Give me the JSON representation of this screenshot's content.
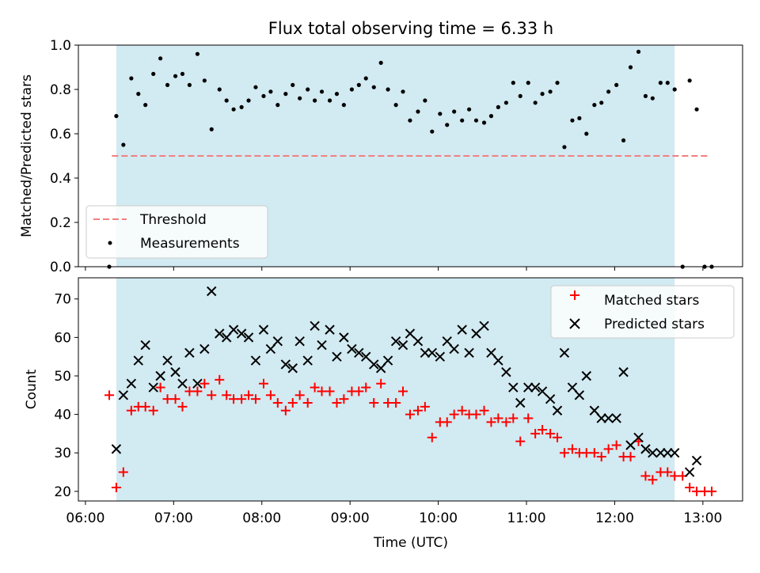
{
  "chart_data": [
    {
      "type": "scatter",
      "title": "Flux total observing time = 6.33 h",
      "ylabel": "Matched/Predicted stars",
      "ylim": [
        0,
        1.0
      ],
      "yticks": [
        "0.0",
        "0.2",
        "0.4",
        "0.6",
        "0.8",
        "1.0"
      ],
      "yticks_values": [
        0.0,
        0.2,
        0.4,
        0.6,
        0.8,
        1.0
      ],
      "shaded_range": [
        6.35,
        12.68
      ],
      "shade_color": "#add8e6",
      "threshold": {
        "value": 0.5,
        "x_range": [
          6.3,
          13.05
        ],
        "name": "Threshold",
        "color": "#f08080"
      },
      "legend": {
        "placement": "lower-left",
        "entries": [
          "Threshold",
          "Measurements"
        ]
      },
      "series": [
        {
          "name": "Measurements",
          "marker": "dot",
          "color": "#000000",
          "x": [
            6.27,
            6.35,
            6.43,
            6.52,
            6.6,
            6.68,
            6.77,
            6.85,
            6.93,
            7.02,
            7.1,
            7.18,
            7.27,
            7.35,
            7.43,
            7.52,
            7.6,
            7.68,
            7.77,
            7.85,
            7.93,
            8.02,
            8.1,
            8.18,
            8.27,
            8.35,
            8.43,
            8.52,
            8.6,
            8.68,
            8.77,
            8.85,
            8.93,
            9.02,
            9.1,
            9.18,
            9.27,
            9.35,
            9.43,
            9.52,
            9.6,
            9.68,
            9.77,
            9.85,
            9.93,
            10.02,
            10.1,
            10.18,
            10.27,
            10.35,
            10.43,
            10.52,
            10.6,
            10.68,
            10.77,
            10.85,
            10.93,
            11.02,
            11.1,
            11.18,
            11.27,
            11.35,
            11.43,
            11.52,
            11.6,
            11.68,
            11.77,
            11.85,
            11.93,
            12.02,
            12.1,
            12.18,
            12.27,
            12.35,
            12.43,
            12.52,
            12.6,
            12.68,
            12.77,
            12.85,
            12.93,
            13.02,
            13.1
          ],
          "y": [
            0.0,
            0.68,
            0.55,
            0.85,
            0.78,
            0.73,
            0.87,
            0.94,
            0.82,
            0.86,
            0.87,
            0.82,
            0.96,
            0.84,
            0.62,
            0.8,
            0.75,
            0.71,
            0.72,
            0.75,
            0.81,
            0.77,
            0.79,
            0.73,
            0.78,
            0.82,
            0.76,
            0.8,
            0.75,
            0.79,
            0.75,
            0.78,
            0.73,
            0.8,
            0.82,
            0.85,
            0.81,
            0.92,
            0.8,
            0.73,
            0.79,
            0.66,
            0.7,
            0.75,
            0.61,
            0.69,
            0.64,
            0.7,
            0.66,
            0.71,
            0.66,
            0.65,
            0.68,
            0.72,
            0.74,
            0.83,
            0.77,
            0.83,
            0.74,
            0.78,
            0.79,
            0.83,
            0.54,
            0.66,
            0.67,
            0.6,
            0.73,
            0.74,
            0.79,
            0.82,
            0.57,
            0.9,
            0.97,
            0.77,
            0.76,
            0.83,
            0.83,
            0.8,
            0.0,
            0.84,
            0.71,
            0.0,
            0.0
          ]
        }
      ]
    },
    {
      "type": "scatter",
      "xlabel": "Time (UTC)",
      "ylabel": "Count",
      "ylim": [
        17.5,
        75.5
      ],
      "xlim": [
        5.92,
        13.45
      ],
      "yticks": [
        "20",
        "30",
        "40",
        "50",
        "60",
        "70"
      ],
      "yticks_values": [
        20,
        30,
        40,
        50,
        60,
        70
      ],
      "xticks": [
        "06:00",
        "07:00",
        "08:00",
        "09:00",
        "10:00",
        "11:00",
        "12:00",
        "13:00"
      ],
      "xticks_values": [
        6,
        7,
        8,
        9,
        10,
        11,
        12,
        13
      ],
      "shaded_range": [
        6.35,
        12.68
      ],
      "shade_color": "#add8e6",
      "legend": {
        "placement": "top-right",
        "entries": [
          "Matched stars",
          "Predicted stars"
        ]
      },
      "series": [
        {
          "name": "Matched stars",
          "marker": "plus",
          "color": "#ff0000",
          "x": [
            6.27,
            6.35,
            6.43,
            6.52,
            6.6,
            6.68,
            6.77,
            6.85,
            6.93,
            7.02,
            7.1,
            7.18,
            7.27,
            7.35,
            7.43,
            7.52,
            7.6,
            7.68,
            7.77,
            7.85,
            7.93,
            8.02,
            8.1,
            8.18,
            8.27,
            8.35,
            8.43,
            8.52,
            8.6,
            8.68,
            8.77,
            8.85,
            8.93,
            9.02,
            9.1,
            9.18,
            9.27,
            9.35,
            9.43,
            9.52,
            9.6,
            9.68,
            9.77,
            9.85,
            9.93,
            10.02,
            10.1,
            10.18,
            10.27,
            10.35,
            10.43,
            10.52,
            10.6,
            10.68,
            10.77,
            10.85,
            10.93,
            11.02,
            11.1,
            11.18,
            11.27,
            11.35,
            11.43,
            11.52,
            11.6,
            11.68,
            11.77,
            11.85,
            11.93,
            12.02,
            12.1,
            12.18,
            12.27,
            12.35,
            12.43,
            12.52,
            12.6,
            12.68,
            12.77,
            12.85,
            12.93,
            13.02,
            13.1
          ],
          "y": [
            45,
            21,
            25,
            41,
            42,
            42,
            41,
            47,
            44,
            44,
            42,
            46,
            46,
            48,
            45,
            49,
            45,
            44,
            44,
            45,
            44,
            48,
            45,
            43,
            41,
            43,
            45,
            43,
            47,
            46,
            46,
            43,
            44,
            46,
            46,
            47,
            43,
            48,
            43,
            43,
            46,
            40,
            41,
            42,
            34,
            38,
            38,
            40,
            41,
            40,
            40,
            41,
            38,
            39,
            38,
            39,
            33,
            39,
            35,
            36,
            35,
            34,
            30,
            31,
            30,
            30,
            30,
            29,
            31,
            32,
            29,
            29,
            33,
            24,
            23,
            25,
            25,
            24,
            24,
            21,
            20,
            20,
            20
          ]
        },
        {
          "name": "Predicted stars",
          "marker": "cross",
          "color": "#000000",
          "x": [
            6.35,
            6.43,
            6.52,
            6.6,
            6.68,
            6.77,
            6.85,
            6.93,
            7.02,
            7.1,
            7.18,
            7.27,
            7.35,
            7.43,
            7.52,
            7.6,
            7.68,
            7.77,
            7.85,
            7.93,
            8.02,
            8.1,
            8.18,
            8.27,
            8.35,
            8.43,
            8.52,
            8.6,
            8.68,
            8.77,
            8.85,
            8.93,
            9.02,
            9.1,
            9.18,
            9.27,
            9.35,
            9.43,
            9.52,
            9.6,
            9.68,
            9.77,
            9.85,
            9.93,
            10.02,
            10.1,
            10.18,
            10.27,
            10.35,
            10.43,
            10.52,
            10.6,
            10.68,
            10.77,
            10.85,
            10.93,
            11.02,
            11.1,
            11.18,
            11.27,
            11.35,
            11.43,
            11.52,
            11.6,
            11.68,
            11.77,
            11.85,
            11.93,
            12.02,
            12.1,
            12.18,
            12.27,
            12.35,
            12.43,
            12.52,
            12.6,
            12.68,
            12.85,
            12.93
          ],
          "y": [
            31,
            45,
            48,
            54,
            58,
            47,
            50,
            54,
            51,
            48,
            56,
            48,
            57,
            72,
            61,
            60,
            62,
            61,
            60,
            54,
            62,
            57,
            59,
            53,
            52,
            59,
            54,
            63,
            58,
            62,
            55,
            60,
            57,
            56,
            55,
            53,
            52,
            54,
            59,
            58,
            61,
            59,
            56,
            56,
            55,
            59,
            57,
            62,
            56,
            61,
            63,
            56,
            54,
            51,
            47,
            43,
            47,
            47,
            46,
            44,
            41,
            56,
            47,
            45,
            50,
            41,
            39,
            39,
            39,
            51,
            32,
            34,
            31,
            30,
            30,
            30,
            30,
            25,
            28
          ]
        }
      ]
    }
  ]
}
